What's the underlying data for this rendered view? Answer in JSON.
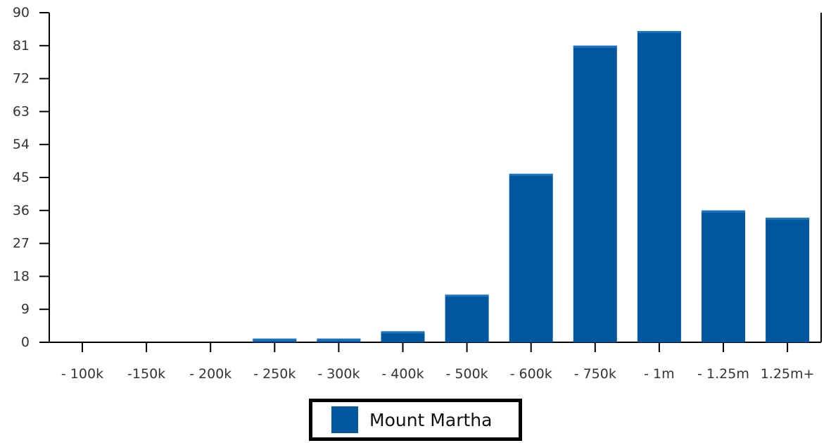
{
  "chart_data": {
    "type": "bar",
    "categories": [
      "- 100k",
      "-150k",
      "- 200k",
      "- 250k",
      "- 300k",
      "- 400k",
      "- 500k",
      "- 600k",
      "- 750k",
      "- 1m",
      "- 1.25m",
      "1.25m+"
    ],
    "series": [
      {
        "name": "Mount Martha",
        "values": [
          0,
          0,
          0,
          1,
          1,
          3,
          13,
          46,
          81,
          85,
          36,
          34
        ]
      }
    ],
    "yticks": [
      "0",
      "9",
      "18",
      "27",
      "36",
      "45",
      "54",
      "63",
      "72",
      "81",
      "90"
    ],
    "ylim": [
      0,
      90
    ],
    "title": "",
    "xlabel": "",
    "ylabel": "",
    "grid": false,
    "legend_position": "bottom",
    "bar_color": "#00579f"
  },
  "legend": {
    "label": "Mount Martha"
  }
}
